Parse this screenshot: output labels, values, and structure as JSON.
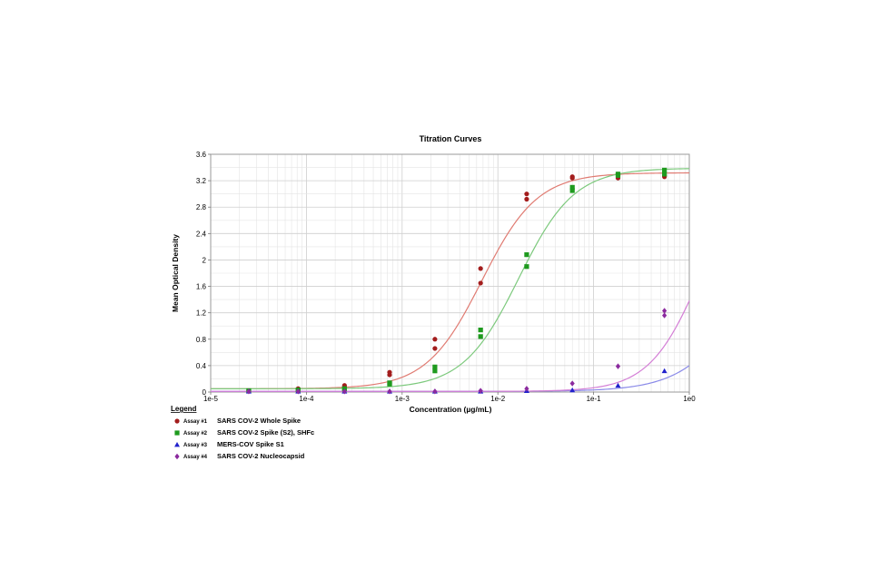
{
  "chart_data": {
    "type": "scatter",
    "title": "Titration Curves",
    "xlabel": "Concentration (µg/mL)",
    "ylabel": "Mean Optical Density",
    "xscale": "log",
    "xlim": [
      1e-05,
      1
    ],
    "ylim": [
      0,
      3.6
    ],
    "x_ticks": [
      1e-05,
      0.0001,
      0.001,
      0.01,
      0.1,
      1
    ],
    "x_tick_labels": [
      "1e-5",
      "1e-4",
      "1e-3",
      "1e-2",
      "1e-1",
      "1e0"
    ],
    "y_ticks": [
      0,
      0.4,
      0.8,
      1.2,
      1.6,
      2,
      2.4,
      2.8,
      3.2,
      3.6
    ],
    "y_tick_labels": [
      "0",
      "0.4",
      "0.8",
      "1.2",
      "1.6",
      "2",
      "2.4",
      "2.8",
      "3.2",
      "3.6"
    ],
    "grid": true,
    "legend_title": "Legend",
    "legend_position": "bottom-left",
    "series": [
      {
        "assay": "Assay #1",
        "name": "SARS COV-2 Whole Spike",
        "color": "#a31d1d",
        "curve_color": "#e07b72",
        "marker": "circle",
        "x": [
          2.5e-05,
          2.5e-05,
          8.2e-05,
          8.2e-05,
          0.00025,
          0.00025,
          0.00074,
          0.00074,
          0.0022,
          0.0022,
          0.0066,
          0.0066,
          0.02,
          0.02,
          0.06,
          0.06,
          0.18,
          0.18,
          0.55,
          0.55
        ],
        "y": [
          0.02,
          0.02,
          0.05,
          0.05,
          0.1,
          0.08,
          0.3,
          0.26,
          0.8,
          0.66,
          1.87,
          1.65,
          3.0,
          2.92,
          3.26,
          3.24,
          3.3,
          3.24,
          3.28,
          3.26
        ],
        "fit": {
          "bottom": 0.05,
          "top": 3.32,
          "ec50": 0.0068,
          "hill": 1.5
        }
      },
      {
        "assay": "Assay #2",
        "name": "SARS COV-2 Spike (S2), SHFc",
        "color": "#1e9a1e",
        "curve_color": "#7cc97c",
        "marker": "square",
        "x": [
          2.5e-05,
          2.5e-05,
          8.2e-05,
          8.2e-05,
          0.00025,
          0.00025,
          0.00074,
          0.00074,
          0.0022,
          0.0022,
          0.0066,
          0.0066,
          0.02,
          0.02,
          0.06,
          0.06,
          0.18,
          0.18,
          0.55,
          0.55
        ],
        "y": [
          0.02,
          0.02,
          0.03,
          0.03,
          0.05,
          0.05,
          0.14,
          0.12,
          0.38,
          0.32,
          0.94,
          0.84,
          2.08,
          1.9,
          3.1,
          3.05,
          3.3,
          3.28,
          3.36,
          3.3
        ],
        "fit": {
          "bottom": 0.05,
          "top": 3.39,
          "ec50": 0.0165,
          "hill": 1.5
        }
      },
      {
        "assay": "Assay #3",
        "name": "MERS-COV Spike S1",
        "color": "#2222cc",
        "curve_color": "#8a8ae8",
        "marker": "triangle",
        "x": [
          2.5e-05,
          8.2e-05,
          0.00025,
          0.00074,
          0.0022,
          0.0066,
          0.02,
          0.06,
          0.18,
          0.55
        ],
        "y": [
          0.01,
          0.01,
          0.01,
          0.01,
          0.01,
          0.01,
          0.02,
          0.03,
          0.1,
          0.32
        ],
        "fit": {
          "bottom": 0.01,
          "top": 3.4,
          "ec50": 4.8,
          "hill": 1.3
        }
      },
      {
        "assay": "Assay #4",
        "name": "SARS COV-2 Nucleocapsid",
        "color": "#8b2a9e",
        "curve_color": "#d47fd6",
        "marker": "diamond",
        "x": [
          2.5e-05,
          8.2e-05,
          0.00025,
          0.00074,
          0.0022,
          0.0066,
          0.02,
          0.06,
          0.18,
          0.55,
          0.55
        ],
        "y": [
          0.01,
          0.01,
          0.01,
          0.01,
          0.01,
          0.02,
          0.05,
          0.13,
          0.39,
          1.23,
          1.16
        ],
        "fit": {
          "bottom": 0.01,
          "top": 3.6,
          "ec50": 1.35,
          "hill": 1.6
        }
      }
    ]
  }
}
